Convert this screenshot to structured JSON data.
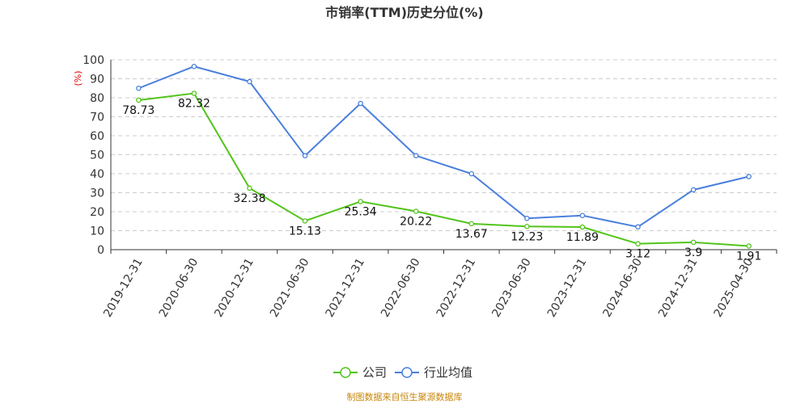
{
  "chart_data": {
    "type": "line",
    "title": "市销率(TTM)历史分位(%)",
    "ylabel": "(%)",
    "xlabel": "",
    "ylim": [
      0,
      100
    ],
    "yticks": [
      0,
      10,
      20,
      30,
      40,
      50,
      60,
      70,
      80,
      90,
      100
    ],
    "grid": true,
    "legend_position": "bottom-center",
    "categories": [
      "2019-12-31",
      "2020-06-30",
      "2020-12-31",
      "2021-06-30",
      "2021-12-31",
      "2022-06-30",
      "2022-12-31",
      "2023-06-30",
      "2023-12-31",
      "2024-06-30",
      "2024-12-31",
      "2025-04-30"
    ],
    "series": [
      {
        "name": "公司",
        "color": "#52c41a",
        "values": [
          78.73,
          82.32,
          32.38,
          15.13,
          25.34,
          20.22,
          13.67,
          12.23,
          11.89,
          3.12,
          3.9,
          1.91
        ],
        "labels": [
          "78.73",
          "82.32",
          "32.38",
          "15.13",
          "25.34",
          "20.22",
          "13.67",
          "12.23",
          "11.89",
          "3.12",
          "3.9",
          "1.91"
        ]
      },
      {
        "name": "行业均值",
        "color": "#4a7fdc",
        "values": [
          85,
          96.5,
          88.5,
          49.5,
          77,
          49.5,
          40,
          16.5,
          18,
          12,
          31.5,
          38.5
        ]
      }
    ]
  },
  "source_note": "制图数据来自恒生聚源数据库"
}
